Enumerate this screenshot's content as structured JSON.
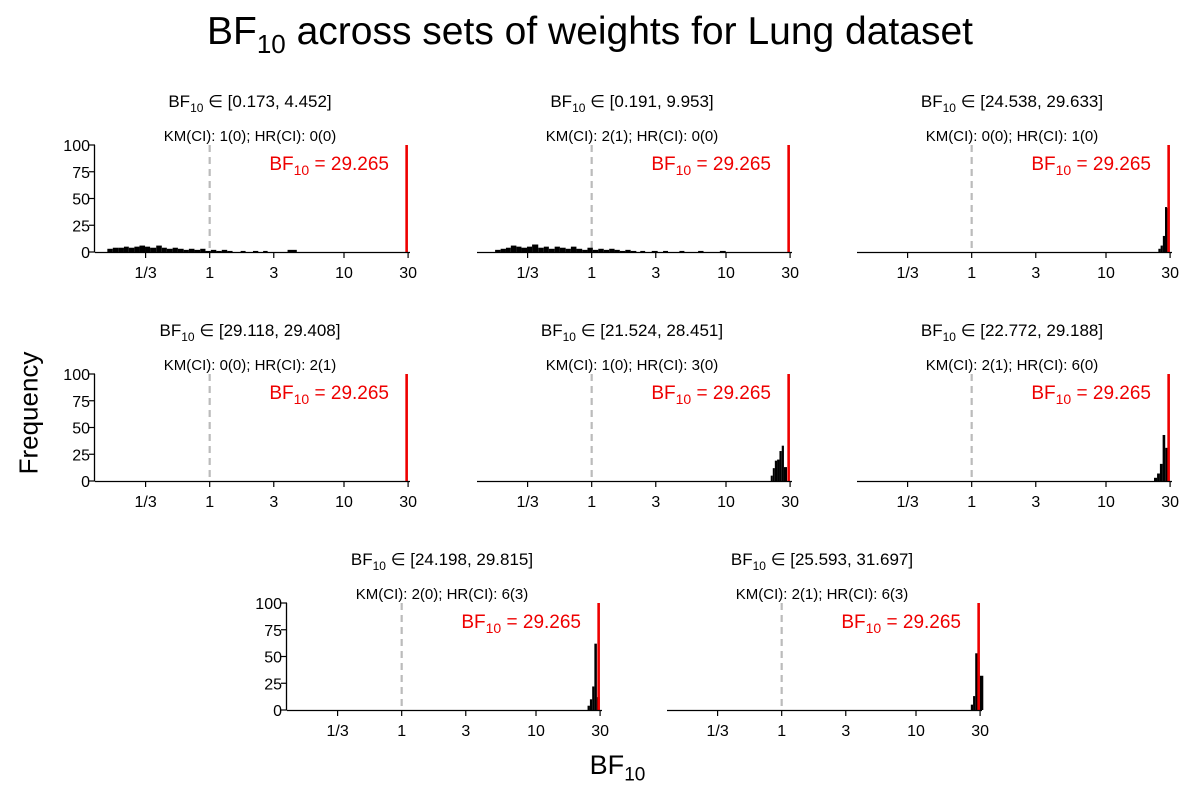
{
  "title": {
    "main": "BF",
    "sub": "10",
    "rest": " across sets of weights for Lung dataset"
  },
  "ylabel": "Frequency",
  "xlabel": {
    "main": "BF",
    "sub": "10"
  },
  "chart_data": {
    "type": "histogram",
    "x_scale": "log",
    "xlim": [
      0.14,
      31
    ],
    "ylim": [
      0,
      100
    ],
    "x_ticks": [
      {
        "value": 0.3333,
        "label": "1/3"
      },
      {
        "value": 1,
        "label": "1"
      },
      {
        "value": 3,
        "label": "3"
      },
      {
        "value": 10,
        "label": "10"
      },
      {
        "value": 30,
        "label": "30"
      }
    ],
    "y_ticks": [
      0,
      25,
      50,
      75,
      100
    ],
    "reference_line": {
      "value": 1,
      "style": "dashed",
      "color": "#bbbbbb"
    },
    "observed": {
      "value": 29.265,
      "label_prefix": "BF",
      "label_sub": "10",
      "label_suffix": " = 29.265",
      "color": "#ee0000"
    },
    "panels": [
      {
        "range_label": "∈ [0.173, 4.452]",
        "counts_label": "KM(CI): 1(0);   HR(CI): 0(0)",
        "bins": [
          [
            0.173,
            0.19,
            3
          ],
          [
            0.19,
            0.21,
            4
          ],
          [
            0.21,
            0.23,
            4
          ],
          [
            0.23,
            0.25,
            5
          ],
          [
            0.25,
            0.275,
            4
          ],
          [
            0.275,
            0.3,
            5
          ],
          [
            0.3,
            0.33,
            6
          ],
          [
            0.33,
            0.36,
            5
          ],
          [
            0.36,
            0.4,
            4
          ],
          [
            0.4,
            0.44,
            6
          ],
          [
            0.44,
            0.48,
            4
          ],
          [
            0.48,
            0.53,
            3
          ],
          [
            0.53,
            0.58,
            4
          ],
          [
            0.58,
            0.64,
            3
          ],
          [
            0.64,
            0.7,
            2
          ],
          [
            0.7,
            0.77,
            3
          ],
          [
            0.77,
            0.85,
            2
          ],
          [
            0.85,
            0.93,
            3
          ],
          [
            0.93,
            1.02,
            1
          ],
          [
            1.02,
            1.12,
            2
          ],
          [
            1.12,
            1.23,
            1
          ],
          [
            1.23,
            1.35,
            2
          ],
          [
            1.35,
            1.48,
            1
          ],
          [
            1.7,
            1.85,
            1
          ],
          [
            2.1,
            2.3,
            1
          ],
          [
            2.5,
            2.7,
            1
          ],
          [
            3.8,
            4.452,
            2
          ]
        ]
      },
      {
        "range_label": "∈ [0.191, 9.953]",
        "counts_label": "KM(CI): 2(1);   HR(CI): 0(0)",
        "bins": [
          [
            0.191,
            0.21,
            2
          ],
          [
            0.21,
            0.23,
            3
          ],
          [
            0.23,
            0.25,
            4
          ],
          [
            0.25,
            0.275,
            6
          ],
          [
            0.275,
            0.3,
            5
          ],
          [
            0.3,
            0.33,
            4
          ],
          [
            0.33,
            0.36,
            5
          ],
          [
            0.36,
            0.4,
            7
          ],
          [
            0.4,
            0.44,
            4
          ],
          [
            0.44,
            0.48,
            5
          ],
          [
            0.48,
            0.53,
            3
          ],
          [
            0.53,
            0.58,
            5
          ],
          [
            0.58,
            0.64,
            4
          ],
          [
            0.64,
            0.7,
            3
          ],
          [
            0.7,
            0.77,
            5
          ],
          [
            0.77,
            0.85,
            3
          ],
          [
            0.85,
            0.93,
            2
          ],
          [
            0.93,
            1.02,
            4
          ],
          [
            1.02,
            1.12,
            2
          ],
          [
            1.12,
            1.23,
            3
          ],
          [
            1.23,
            1.35,
            2
          ],
          [
            1.35,
            1.48,
            3
          ],
          [
            1.48,
            1.62,
            2
          ],
          [
            1.62,
            1.78,
            1
          ],
          [
            1.78,
            1.95,
            2
          ],
          [
            1.95,
            2.15,
            1
          ],
          [
            2.3,
            2.5,
            1
          ],
          [
            2.8,
            3.1,
            1
          ],
          [
            3.4,
            3.7,
            1
          ],
          [
            4.5,
            4.9,
            1
          ],
          [
            6.2,
            6.8,
            1
          ],
          [
            9.0,
            9.953,
            1
          ]
        ]
      },
      {
        "range_label": "∈ [24.538, 29.633]",
        "counts_label": "KM(CI): 0(0);   HR(CI): 1(0)",
        "bins": [
          [
            24.538,
            25.5,
            3
          ],
          [
            25.5,
            26.5,
            6
          ],
          [
            26.5,
            27.5,
            15
          ],
          [
            27.5,
            28.5,
            42
          ],
          [
            28.5,
            29.633,
            41
          ]
        ]
      },
      {
        "range_label": "∈ [29.118, 29.408]",
        "counts_label": "KM(CI): 0(0);   HR(CI): 2(1)",
        "bins": [
          [
            28.7,
            29.408,
            100
          ]
        ]
      },
      {
        "range_label": "∈ [21.524, 28.451]",
        "counts_label": "KM(CI): 1(0);   HR(CI): 3(0)",
        "bins": [
          [
            21.524,
            22.3,
            5
          ],
          [
            22.3,
            23.1,
            12
          ],
          [
            23.1,
            24.0,
            19
          ],
          [
            24.0,
            25.0,
            20
          ],
          [
            25.0,
            26.0,
            28
          ],
          [
            26.0,
            27.0,
            33
          ],
          [
            27.0,
            28.451,
            13
          ]
        ]
      },
      {
        "range_label": "∈ [22.772, 29.188]",
        "counts_label": "KM(CI): 2(1);   HR(CI): 6(0)",
        "bins": [
          [
            22.772,
            24.0,
            3
          ],
          [
            24.0,
            25.2,
            7
          ],
          [
            25.2,
            26.4,
            16
          ],
          [
            26.4,
            27.6,
            43
          ],
          [
            27.6,
            29.188,
            31
          ]
        ]
      },
      {
        "range_label": "∈ [24.198, 29.815]",
        "counts_label": "KM(CI): 2(0);   HR(CI): 6(3)",
        "bins": [
          [
            24.198,
            25.2,
            4
          ],
          [
            25.2,
            26.2,
            10
          ],
          [
            26.2,
            27.2,
            22
          ],
          [
            27.2,
            28.4,
            62
          ],
          [
            28.4,
            29.815,
            12
          ]
        ]
      },
      {
        "range_label": "∈ [25.593, 31.697]",
        "counts_label": "KM(CI): 2(1);   HR(CI): 6(3)",
        "bins": [
          [
            25.593,
            26.6,
            5
          ],
          [
            26.6,
            27.6,
            13
          ],
          [
            27.6,
            28.7,
            53
          ],
          [
            28.7,
            29.8,
            45
          ],
          [
            29.8,
            31.697,
            32
          ]
        ]
      }
    ]
  }
}
